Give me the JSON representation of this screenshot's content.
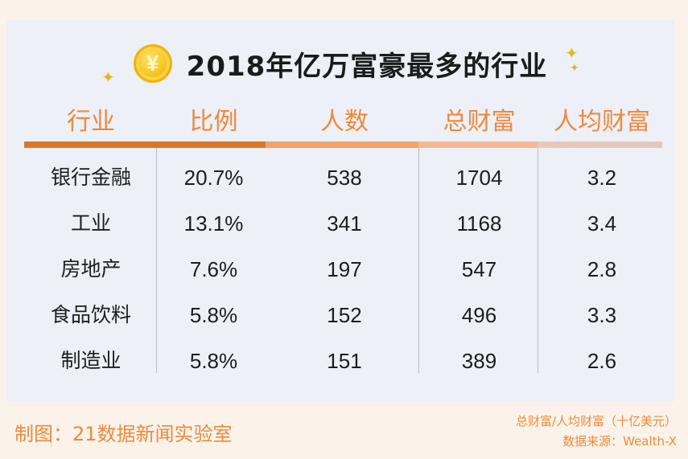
{
  "chart_data": {
    "type": "table",
    "title": "2018年亿万富豪最多的行业",
    "columns": [
      "行业",
      "比例",
      "人数",
      "总财富",
      "人均财富"
    ],
    "rows": [
      {
        "industry": "银行金融",
        "ratio": "20.7%",
        "count": "538",
        "total_wealth": "1704",
        "per_capita": "3.2"
      },
      {
        "industry": "工业",
        "ratio": "13.1%",
        "count": "341",
        "total_wealth": "1168",
        "per_capita": "3.4"
      },
      {
        "industry": "房地产",
        "ratio": "7.6%",
        "count": "197",
        "total_wealth": "547",
        "per_capita": "2.8"
      },
      {
        "industry": "食品饮料",
        "ratio": "5.8%",
        "count": "152",
        "total_wealth": "496",
        "per_capita": "3.3"
      },
      {
        "industry": "制造业",
        "ratio": "5.8%",
        "count": "151",
        "total_wealth": "389",
        "per_capita": "2.6"
      }
    ]
  },
  "coin_symbol": "¥",
  "footer": {
    "credit": "制图：21数据新闻实验室",
    "unit_note": "总财富/人均财富（十亿美元）",
    "source": "数据来源：Wealth-X"
  },
  "colors": {
    "accent": "#ec8a3c",
    "bar": [
      "#d9772c",
      "#eea46a",
      "#f1b994",
      "#ecc7b4",
      "#e0c8c0"
    ]
  }
}
